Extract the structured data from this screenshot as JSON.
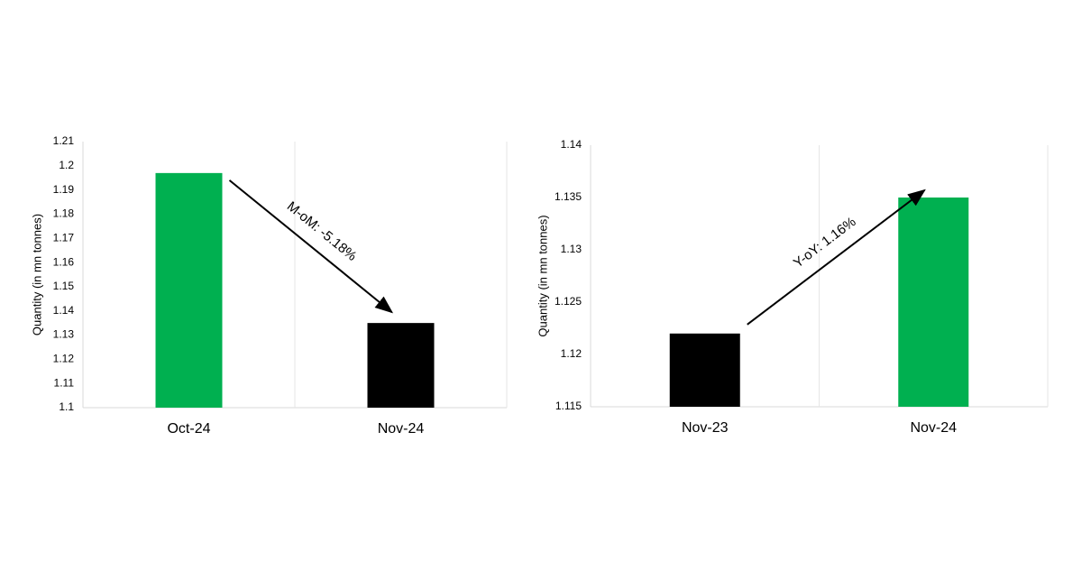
{
  "chart_data": [
    {
      "type": "bar",
      "y_label": "Quantity (in mn tonnes)",
      "categories": [
        "Oct-24",
        "Nov-24"
      ],
      "values": [
        1.197,
        1.135
      ],
      "colors": [
        "#00b050",
        "#000000"
      ],
      "ylim": [
        1.1,
        1.21
      ],
      "yticks": [
        1.1,
        1.11,
        1.12,
        1.13,
        1.14,
        1.15,
        1.16,
        1.17,
        1.18,
        1.19,
        1.2,
        1.21
      ],
      "grid": true,
      "annotation": "M-oM: -5.18%"
    },
    {
      "type": "bar",
      "y_label": "Quantity (in mn tonnes)",
      "categories": [
        "Nov-23",
        "Nov-24"
      ],
      "values": [
        1.122,
        1.135
      ],
      "colors": [
        "#000000",
        "#00b050"
      ],
      "ylim": [
        1.115,
        1.14
      ],
      "yticks": [
        1.115,
        1.12,
        1.125,
        1.13,
        1.135,
        1.14
      ],
      "grid": true,
      "annotation": "Y-oY: 1.16%"
    }
  ]
}
